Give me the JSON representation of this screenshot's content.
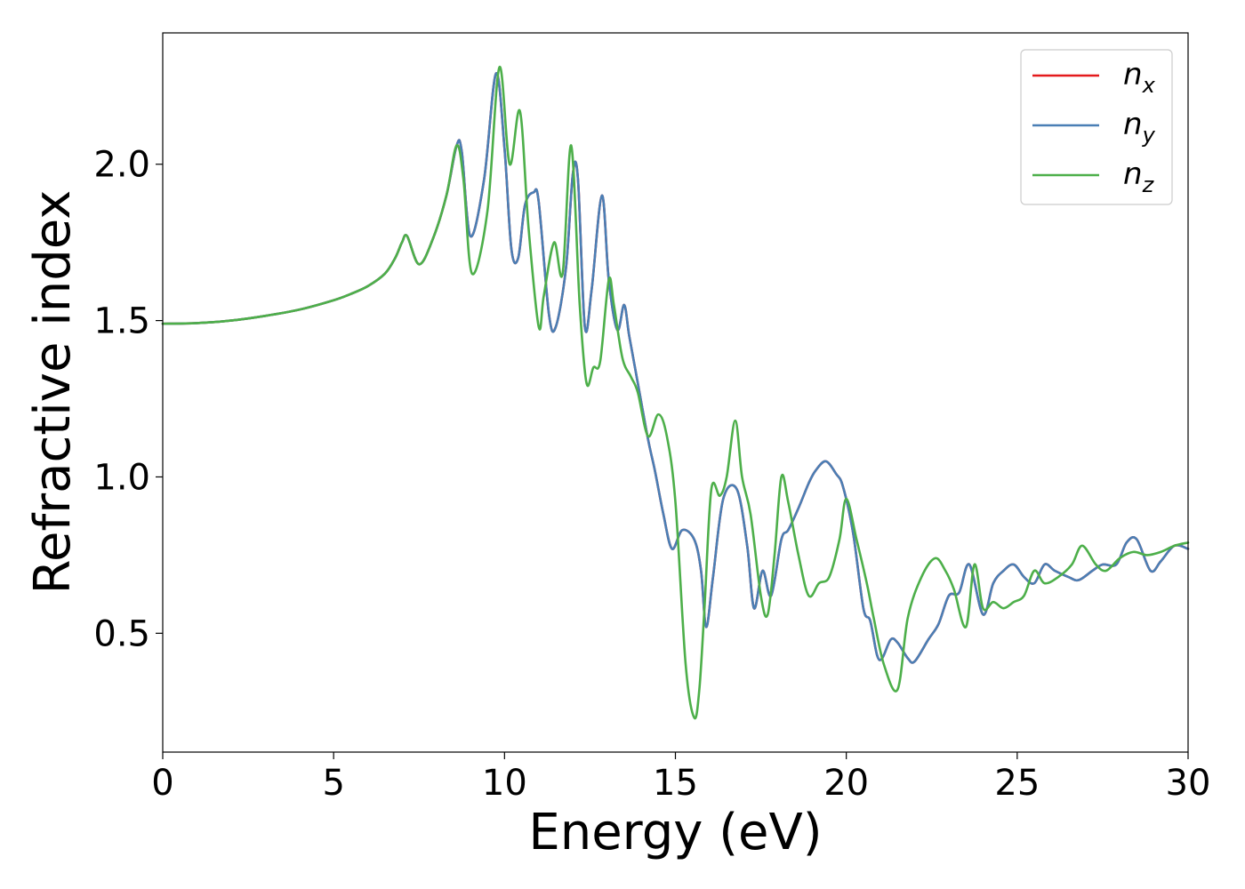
{
  "chart_data": {
    "type": "line",
    "xlabel": "Energy (eV)",
    "ylabel": "Refractive index",
    "xlim": [
      0,
      30
    ],
    "ylim": [
      0.12,
      2.42
    ],
    "xticks": [
      0,
      5,
      10,
      15,
      20,
      25,
      30
    ],
    "xtick_labels": [
      "0",
      "5",
      "10",
      "15",
      "20",
      "25",
      "30"
    ],
    "yticks": [
      0.5,
      1.0,
      1.5,
      2.0
    ],
    "ytick_labels": [
      "0.5",
      "1.0",
      "1.5",
      "2.0"
    ],
    "grid": false,
    "legend_position": "top-right",
    "series": [
      {
        "name": "n_x",
        "label_base": "n",
        "label_sub": "x",
        "color": "#e41a1c",
        "x": [
          0,
          1,
          2,
          3,
          4,
          5,
          5.5,
          6,
          6.5,
          6.8,
          7.0,
          7.15,
          7.5,
          7.9,
          8.3,
          8.6,
          8.75,
          9.0,
          9.4,
          9.75,
          10.0,
          10.2,
          10.4,
          10.6,
          10.85,
          11.0,
          11.3,
          11.5,
          11.8,
          12.0,
          12.15,
          12.35,
          12.55,
          12.85,
          13.05,
          13.3,
          13.5,
          13.65,
          13.9,
          14.2,
          14.4,
          14.65,
          14.9,
          15.2,
          15.55,
          15.75,
          15.9,
          16.1,
          16.4,
          16.8,
          17.1,
          17.3,
          17.55,
          17.8,
          18.1,
          18.3,
          18.6,
          18.9,
          19.1,
          19.4,
          19.7,
          19.9,
          20.2,
          20.5,
          20.7,
          20.9,
          21.05,
          21.3,
          21.5,
          21.8,
          22.0,
          22.4,
          22.7,
          23.0,
          23.3,
          23.6,
          24.0,
          24.3,
          24.6,
          24.9,
          25.2,
          25.5,
          25.8,
          26.1,
          26.5,
          26.8,
          27.2,
          27.5,
          27.9,
          28.2,
          28.5,
          28.9,
          29.2,
          29.6,
          30.0
        ],
        "y": [
          1.49,
          1.492,
          1.5,
          1.515,
          1.535,
          1.565,
          1.585,
          1.61,
          1.65,
          1.7,
          1.75,
          1.77,
          1.68,
          1.76,
          1.9,
          2.06,
          2.04,
          1.77,
          1.95,
          2.29,
          2.05,
          1.73,
          1.7,
          1.87,
          1.91,
          1.88,
          1.52,
          1.48,
          1.67,
          1.97,
          1.95,
          1.48,
          1.6,
          1.9,
          1.63,
          1.47,
          1.55,
          1.45,
          1.3,
          1.12,
          1.02,
          0.88,
          0.77,
          0.83,
          0.8,
          0.7,
          0.52,
          0.68,
          0.93,
          0.96,
          0.78,
          0.58,
          0.7,
          0.62,
          0.8,
          0.83,
          0.9,
          0.98,
          1.02,
          1.05,
          1.01,
          0.97,
          0.82,
          0.58,
          0.54,
          0.43,
          0.42,
          0.48,
          0.47,
          0.42,
          0.41,
          0.48,
          0.53,
          0.62,
          0.63,
          0.72,
          0.56,
          0.66,
          0.7,
          0.72,
          0.68,
          0.66,
          0.72,
          0.7,
          0.68,
          0.67,
          0.7,
          0.72,
          0.72,
          0.79,
          0.8,
          0.7,
          0.73,
          0.78,
          0.77
        ]
      },
      {
        "name": "n_y",
        "label_base": "n",
        "label_sub": "y",
        "color": "#4a7fb5",
        "x": [
          0,
          1,
          2,
          3,
          4,
          5,
          5.5,
          6,
          6.5,
          6.8,
          7.0,
          7.15,
          7.5,
          7.9,
          8.3,
          8.6,
          8.75,
          9.0,
          9.4,
          9.75,
          10.0,
          10.2,
          10.4,
          10.6,
          10.85,
          11.0,
          11.3,
          11.5,
          11.8,
          12.0,
          12.15,
          12.35,
          12.55,
          12.85,
          13.05,
          13.3,
          13.5,
          13.65,
          13.9,
          14.2,
          14.4,
          14.65,
          14.9,
          15.2,
          15.55,
          15.75,
          15.9,
          16.1,
          16.4,
          16.8,
          17.1,
          17.3,
          17.55,
          17.8,
          18.1,
          18.3,
          18.6,
          18.9,
          19.1,
          19.4,
          19.7,
          19.9,
          20.2,
          20.5,
          20.7,
          20.9,
          21.05,
          21.3,
          21.5,
          21.8,
          22.0,
          22.4,
          22.7,
          23.0,
          23.3,
          23.6,
          24.0,
          24.3,
          24.6,
          24.9,
          25.2,
          25.5,
          25.8,
          26.1,
          26.5,
          26.8,
          27.2,
          27.5,
          27.9,
          28.2,
          28.5,
          28.9,
          29.2,
          29.6,
          30.0
        ],
        "y": [
          1.49,
          1.492,
          1.5,
          1.515,
          1.535,
          1.565,
          1.585,
          1.61,
          1.65,
          1.7,
          1.75,
          1.77,
          1.68,
          1.76,
          1.9,
          2.06,
          2.04,
          1.77,
          1.95,
          2.29,
          2.05,
          1.73,
          1.7,
          1.87,
          1.91,
          1.88,
          1.52,
          1.48,
          1.67,
          1.97,
          1.95,
          1.48,
          1.6,
          1.9,
          1.63,
          1.47,
          1.55,
          1.45,
          1.3,
          1.12,
          1.02,
          0.88,
          0.77,
          0.83,
          0.8,
          0.7,
          0.52,
          0.68,
          0.93,
          0.96,
          0.78,
          0.58,
          0.7,
          0.62,
          0.8,
          0.83,
          0.9,
          0.98,
          1.02,
          1.05,
          1.01,
          0.97,
          0.82,
          0.58,
          0.54,
          0.43,
          0.42,
          0.48,
          0.47,
          0.42,
          0.41,
          0.48,
          0.53,
          0.62,
          0.63,
          0.72,
          0.56,
          0.66,
          0.7,
          0.72,
          0.68,
          0.66,
          0.72,
          0.7,
          0.68,
          0.67,
          0.7,
          0.72,
          0.72,
          0.79,
          0.8,
          0.7,
          0.73,
          0.78,
          0.77
        ]
      },
      {
        "name": "n_z",
        "label_base": "n",
        "label_sub": "z",
        "color": "#4daf4a",
        "x": [
          0,
          1,
          2,
          3,
          4,
          5,
          5.5,
          6,
          6.5,
          6.8,
          7.0,
          7.15,
          7.5,
          7.9,
          8.3,
          8.6,
          8.8,
          9.05,
          9.5,
          9.85,
          10.15,
          10.45,
          10.7,
          11.0,
          11.15,
          11.45,
          11.7,
          11.95,
          12.2,
          12.4,
          12.6,
          12.8,
          13.05,
          13.2,
          13.45,
          13.7,
          13.9,
          14.2,
          14.5,
          14.75,
          15.0,
          15.3,
          15.55,
          15.7,
          15.85,
          16.05,
          16.3,
          16.5,
          16.75,
          16.95,
          17.2,
          17.5,
          17.7,
          17.9,
          18.1,
          18.3,
          18.6,
          18.9,
          19.2,
          19.5,
          19.8,
          20.0,
          20.3,
          20.6,
          20.8,
          21.1,
          21.5,
          21.8,
          22.2,
          22.6,
          22.9,
          23.15,
          23.5,
          23.75,
          24.0,
          24.3,
          24.6,
          24.9,
          25.2,
          25.5,
          25.8,
          26.2,
          26.6,
          26.9,
          27.3,
          27.6,
          28.0,
          28.4,
          28.8,
          29.2,
          29.6,
          30.0
        ],
        "y": [
          1.49,
          1.492,
          1.5,
          1.515,
          1.535,
          1.565,
          1.585,
          1.61,
          1.65,
          1.7,
          1.75,
          1.77,
          1.68,
          1.76,
          1.9,
          2.06,
          1.95,
          1.65,
          1.85,
          2.31,
          2.0,
          2.17,
          1.8,
          1.48,
          1.58,
          1.75,
          1.65,
          2.06,
          1.55,
          1.3,
          1.35,
          1.37,
          1.63,
          1.55,
          1.38,
          1.32,
          1.27,
          1.13,
          1.2,
          1.13,
          0.92,
          0.4,
          0.23,
          0.32,
          0.58,
          0.96,
          0.94,
          1.0,
          1.18,
          1.0,
          0.88,
          0.62,
          0.56,
          0.75,
          1.0,
          0.92,
          0.75,
          0.62,
          0.66,
          0.68,
          0.8,
          0.93,
          0.8,
          0.66,
          0.55,
          0.4,
          0.32,
          0.55,
          0.68,
          0.74,
          0.7,
          0.64,
          0.52,
          0.72,
          0.58,
          0.6,
          0.58,
          0.6,
          0.62,
          0.7,
          0.66,
          0.68,
          0.72,
          0.78,
          0.72,
          0.7,
          0.74,
          0.76,
          0.75,
          0.76,
          0.78,
          0.79
        ]
      }
    ]
  }
}
